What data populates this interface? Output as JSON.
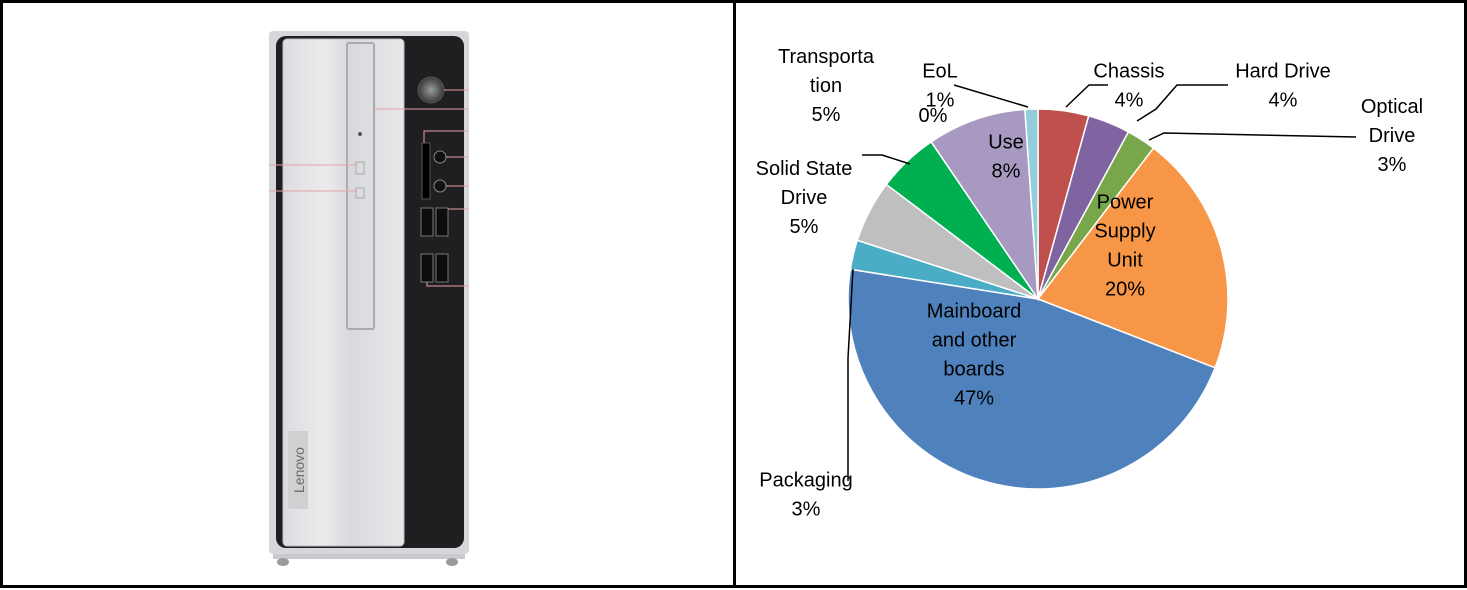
{
  "computer": {
    "brand_text": "Lenovo"
  },
  "chart_data": {
    "type": "pie",
    "start_angle_deg": 0,
    "direction": "clockwise",
    "slices": [
      {
        "name": "Chassis",
        "label": [
          "Chassis",
          "4%"
        ],
        "value": 4.3,
        "color": "#c0504d"
      },
      {
        "name": "Hard Drive",
        "label": [
          "Hard Drive",
          "4%"
        ],
        "value": 3.6,
        "color": "#8064a2"
      },
      {
        "name": "Optical Drive",
        "label": [
          "Optical",
          "Drive",
          "3%"
        ],
        "value": 2.5,
        "color": "#77a64b"
      },
      {
        "name": "Power Supply Unit",
        "label": [
          "Power",
          "Supply",
          "Unit",
          "20%"
        ],
        "value": 20.5,
        "color": "#f79646"
      },
      {
        "name": "Mainboard and other boards",
        "label": [
          "Mainboard",
          "and other",
          "boards",
          "47%"
        ],
        "value": 46.6,
        "color": "#4f81bd"
      },
      {
        "name": "Packaging",
        "label": [
          "Packaging",
          "3%"
        ],
        "value": 2.5,
        "color": "#4bacc6"
      },
      {
        "name": "Solid State Drive",
        "label": [
          "Solid State",
          "Drive",
          "5%"
        ],
        "value": 5.3,
        "color": "#bfbfbf"
      },
      {
        "name": "Transportation",
        "label": [
          "Transporta",
          "tion",
          "5%"
        ],
        "value": 5.2,
        "color": "#00b050"
      },
      {
        "name": "Use",
        "label": [
          "Use",
          "8%"
        ],
        "value": 8.4,
        "color": "#a899c2"
      },
      {
        "name": "EoL",
        "label": [
          "EoL",
          "1%"
        ],
        "value": 1.1,
        "color": "#92cddc"
      }
    ],
    "overlap_label": "0%"
  }
}
